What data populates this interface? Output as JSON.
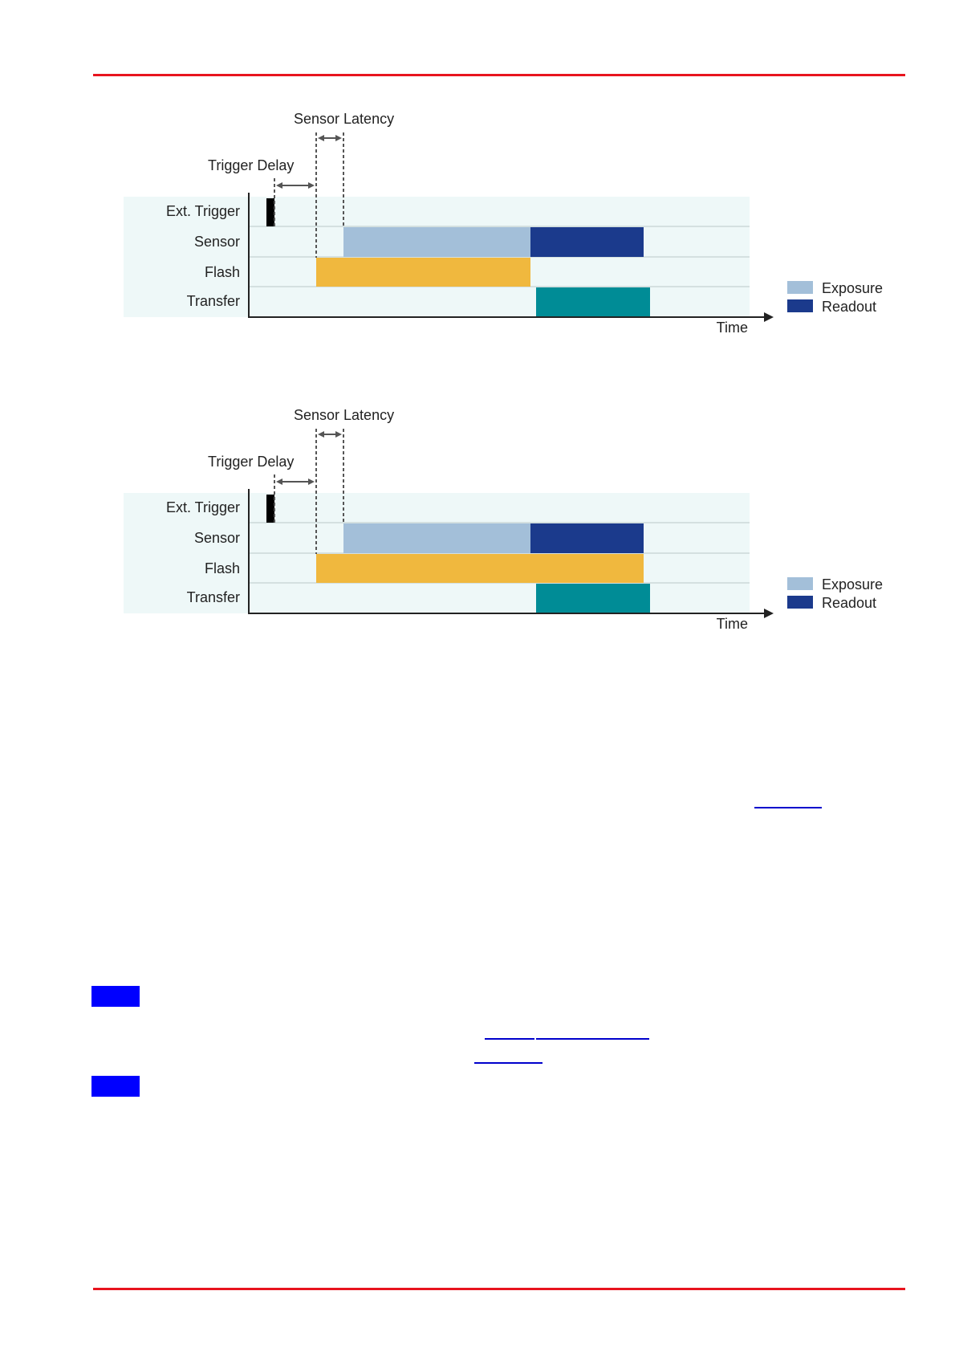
{
  "colors": {
    "rule": "#e8141e",
    "panel": "#eef8f8",
    "exposure": "#a3bfd9",
    "readout": "#1b3a8c",
    "flash": "#f0b83e",
    "transfer": "#008c96",
    "note_box": "#0000ff",
    "link": "#0000cc"
  },
  "diagrams": [
    {
      "labels": {
        "sensor_latency": "Sensor Latency",
        "trigger_delay": "Trigger Delay",
        "rows": [
          "Ext. Trigger",
          "Sensor",
          "Flash",
          "Transfer"
        ],
        "time": "Time",
        "legend": [
          "Exposure",
          "Readout"
        ]
      },
      "flash_extends_through_readout": false
    },
    {
      "labels": {
        "sensor_latency": "Sensor Latency",
        "trigger_delay": "Trigger Delay",
        "rows": [
          "Ext. Trigger",
          "Sensor",
          "Flash",
          "Transfer"
        ],
        "time": "Time",
        "legend": [
          "Exposure",
          "Readout"
        ]
      },
      "flash_extends_through_readout": true
    }
  ]
}
